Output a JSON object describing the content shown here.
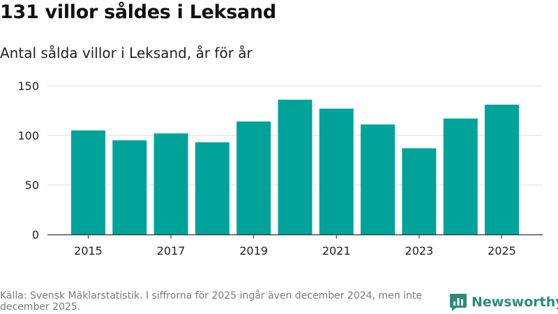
{
  "header": {
    "title": "131 villor såldes i Leksand",
    "subtitle": "Antal sålda villor i Leksand, år för år"
  },
  "footer": {
    "source": "Källa: Svensk Mäklarstatistik. I siffrorna för 2025 ingår även december 2024, men inte december 2025."
  },
  "brand": {
    "name": "Newsworthy",
    "color": "#2a8c74",
    "icon": "bar-chart-logo-icon"
  },
  "colors": {
    "bar": "#00a39a",
    "grid": "#dddddd",
    "axis": "#333333"
  },
  "chart_data": {
    "type": "bar",
    "title": "131 villor såldes i Leksand",
    "subtitle": "Antal sålda villor i Leksand, år för år",
    "xlabel": "",
    "ylabel": "",
    "categories": [
      "2015",
      "2016",
      "2017",
      "2018",
      "2019",
      "2020",
      "2021",
      "2022",
      "2023",
      "2024",
      "2025"
    ],
    "values": [
      105,
      95,
      102,
      93,
      114,
      136,
      127,
      111,
      87,
      117,
      131
    ],
    "x_tick_labels": [
      "2015",
      "2017",
      "2019",
      "2021",
      "2023",
      "2025"
    ],
    "y_ticks": [
      0,
      50,
      100,
      150
    ],
    "ylim": [
      0,
      150
    ],
    "grid": true,
    "legend": "none"
  }
}
